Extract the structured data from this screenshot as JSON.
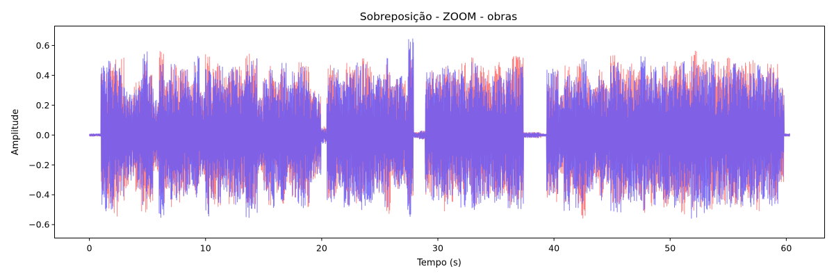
{
  "chart_data": {
    "type": "line",
    "title": "Sobreposição - ZOOM - obras",
    "xlabel": "Tempo (s)",
    "ylabel": "Amplitude",
    "xlim": [
      -3.0,
      63.3
    ],
    "ylim": [
      -0.69,
      0.73
    ],
    "xticks": [
      0,
      10,
      20,
      30,
      40,
      50,
      60
    ],
    "xtick_labels": [
      "0",
      "10",
      "20",
      "30",
      "40",
      "50",
      "60"
    ],
    "yticks": [
      -0.6,
      -0.4,
      -0.2,
      0.0,
      0.2,
      0.4,
      0.6
    ],
    "ytick_labels": [
      "−0.6",
      "−0.4",
      "−0.2",
      "0.0",
      "0.2",
      "0.4",
      "0.6"
    ],
    "grid": false,
    "legend": "none",
    "duration_s": 60.3,
    "series": [
      {
        "color": "#ff7b7b",
        "envelope_upper": [
          0.01,
          0.01,
          0.42,
          0.5,
          0.57,
          0.53,
          0.3,
          0.33,
          0.38,
          0.5,
          0.48,
          0.22,
          0.58,
          0.36,
          0.53,
          0.48,
          0.44,
          0.36,
          0.48,
          0.3,
          0.56,
          0.45,
          0.48,
          0.42,
          0.45,
          0.48,
          0.44,
          0.57,
          0.52,
          0.26,
          0.39,
          0.54,
          0.4,
          0.47,
          0.34,
          0.42,
          0.51,
          0.47,
          0.32,
          0.26,
          0.06,
          0.47,
          0.44,
          0.38,
          0.49,
          0.46,
          0.46,
          0.56,
          0.46,
          0.41,
          0.42,
          0.5,
          0.37,
          0.43,
          0.37,
          0.57,
          0.02,
          0.03,
          0.4,
          0.45,
          0.43,
          0.47,
          0.44,
          0.45,
          0.54,
          0.41,
          0.52,
          0.48,
          0.46,
          0.44,
          0.5,
          0.45,
          0.52,
          0.53,
          0.54,
          0.02,
          0.02,
          0.02,
          0.01,
          0.42,
          0.47,
          0.28,
          0.5,
          0.38,
          0.48,
          0.45,
          0.41,
          0.35,
          0.45,
          0.34,
          0.55,
          0.51,
          0.45,
          0.48,
          0.46,
          0.5,
          0.42,
          0.47,
          0.38,
          0.5,
          0.44,
          0.52,
          0.5,
          0.44,
          0.58,
          0.48,
          0.56,
          0.45,
          0.5,
          0.47,
          0.52,
          0.48,
          0.48,
          0.52,
          0.51,
          0.43,
          0.44,
          0.49,
          0.5,
          0.33,
          0.01
        ],
        "envelope_lower": [
          -0.01,
          -0.01,
          -0.43,
          -0.5,
          -0.56,
          -0.45,
          -0.37,
          -0.27,
          -0.38,
          -0.55,
          -0.47,
          -0.26,
          -0.5,
          -0.38,
          -0.49,
          -0.47,
          -0.42,
          -0.36,
          -0.49,
          -0.29,
          -0.49,
          -0.47,
          -0.51,
          -0.34,
          -0.49,
          -0.43,
          -0.43,
          -0.5,
          -0.53,
          -0.26,
          -0.4,
          -0.49,
          -0.39,
          -0.48,
          -0.36,
          -0.46,
          -0.43,
          -0.49,
          -0.31,
          -0.27,
          -0.05,
          -0.44,
          -0.45,
          -0.38,
          -0.47,
          -0.42,
          -0.47,
          -0.45,
          -0.47,
          -0.38,
          -0.42,
          -0.53,
          -0.34,
          -0.42,
          -0.35,
          -0.47,
          -0.02,
          -0.03,
          -0.41,
          -0.45,
          -0.41,
          -0.52,
          -0.46,
          -0.42,
          -0.46,
          -0.4,
          -0.47,
          -0.42,
          -0.42,
          -0.41,
          -0.43,
          -0.42,
          -0.48,
          -0.45,
          -0.44,
          -0.02,
          -0.02,
          -0.02,
          -0.01,
          -0.42,
          -0.45,
          -0.27,
          -0.47,
          -0.41,
          -0.48,
          -0.56,
          -0.37,
          -0.33,
          -0.42,
          -0.34,
          -0.48,
          -0.47,
          -0.43,
          -0.44,
          -0.4,
          -0.53,
          -0.41,
          -0.49,
          -0.39,
          -0.49,
          -0.43,
          -0.46,
          -0.54,
          -0.41,
          -0.53,
          -0.49,
          -0.48,
          -0.5,
          -0.42,
          -0.47,
          -0.46,
          -0.48,
          -0.49,
          -0.44,
          -0.45,
          -0.52,
          -0.4,
          -0.45,
          -0.47,
          -0.33,
          -0.01
        ]
      },
      {
        "color": "#6a5cf7",
        "envelope_upper": [
          0.01,
          0.01,
          0.51,
          0.53,
          0.48,
          0.46,
          0.33,
          0.3,
          0.4,
          0.57,
          0.43,
          0.24,
          0.49,
          0.37,
          0.48,
          0.44,
          0.45,
          0.35,
          0.53,
          0.29,
          0.46,
          0.43,
          0.47,
          0.33,
          0.49,
          0.44,
          0.43,
          0.49,
          0.52,
          0.25,
          0.4,
          0.49,
          0.37,
          0.52,
          0.34,
          0.43,
          0.47,
          0.47,
          0.31,
          0.28,
          0.05,
          0.45,
          0.47,
          0.38,
          0.44,
          0.42,
          0.49,
          0.48,
          0.45,
          0.4,
          0.43,
          0.52,
          0.34,
          0.4,
          0.35,
          0.66,
          0.02,
          0.03,
          0.43,
          0.46,
          0.41,
          0.48,
          0.46,
          0.44,
          0.46,
          0.38,
          0.49,
          0.42,
          0.41,
          0.4,
          0.44,
          0.42,
          0.47,
          0.46,
          0.46,
          0.02,
          0.02,
          0.02,
          0.01,
          0.45,
          0.47,
          0.27,
          0.49,
          0.38,
          0.46,
          0.55,
          0.36,
          0.32,
          0.4,
          0.33,
          0.49,
          0.49,
          0.41,
          0.46,
          0.38,
          0.56,
          0.38,
          0.47,
          0.37,
          0.5,
          0.43,
          0.46,
          0.54,
          0.4,
          0.5,
          0.47,
          0.49,
          0.53,
          0.42,
          0.47,
          0.45,
          0.49,
          0.46,
          0.44,
          0.42,
          0.48,
          0.42,
          0.46,
          0.44,
          0.32,
          0.01
        ],
        "envelope_lower": [
          -0.01,
          -0.01,
          -0.52,
          -0.5,
          -0.47,
          -0.49,
          -0.32,
          -0.31,
          -0.38,
          -0.49,
          -0.44,
          -0.23,
          -0.56,
          -0.36,
          -0.49,
          -0.46,
          -0.44,
          -0.36,
          -0.5,
          -0.28,
          -0.55,
          -0.44,
          -0.47,
          -0.4,
          -0.44,
          -0.47,
          -0.43,
          -0.56,
          -0.53,
          -0.25,
          -0.39,
          -0.53,
          -0.39,
          -0.45,
          -0.34,
          -0.42,
          -0.5,
          -0.48,
          -0.32,
          -0.27,
          -0.06,
          -0.46,
          -0.43,
          -0.37,
          -0.49,
          -0.45,
          -0.45,
          -0.55,
          -0.46,
          -0.4,
          -0.41,
          -0.49,
          -0.36,
          -0.43,
          -0.36,
          -0.55,
          -0.02,
          -0.03,
          -0.39,
          -0.44,
          -0.44,
          -0.47,
          -0.43,
          -0.45,
          -0.52,
          -0.41,
          -0.51,
          -0.47,
          -0.45,
          -0.43,
          -0.48,
          -0.44,
          -0.51,
          -0.52,
          -0.51,
          -0.02,
          -0.02,
          -0.02,
          -0.01,
          -0.43,
          -0.46,
          -0.28,
          -0.51,
          -0.39,
          -0.49,
          -0.47,
          -0.4,
          -0.34,
          -0.44,
          -0.34,
          -0.54,
          -0.52,
          -0.44,
          -0.47,
          -0.45,
          -0.51,
          -0.41,
          -0.48,
          -0.38,
          -0.49,
          -0.44,
          -0.51,
          -0.52,
          -0.43,
          -0.56,
          -0.48,
          -0.54,
          -0.48,
          -0.48,
          -0.46,
          -0.51,
          -0.47,
          -0.49,
          -0.5,
          -0.49,
          -0.44,
          -0.43,
          -0.48,
          -0.49,
          -0.33,
          -0.01
        ]
      }
    ]
  }
}
